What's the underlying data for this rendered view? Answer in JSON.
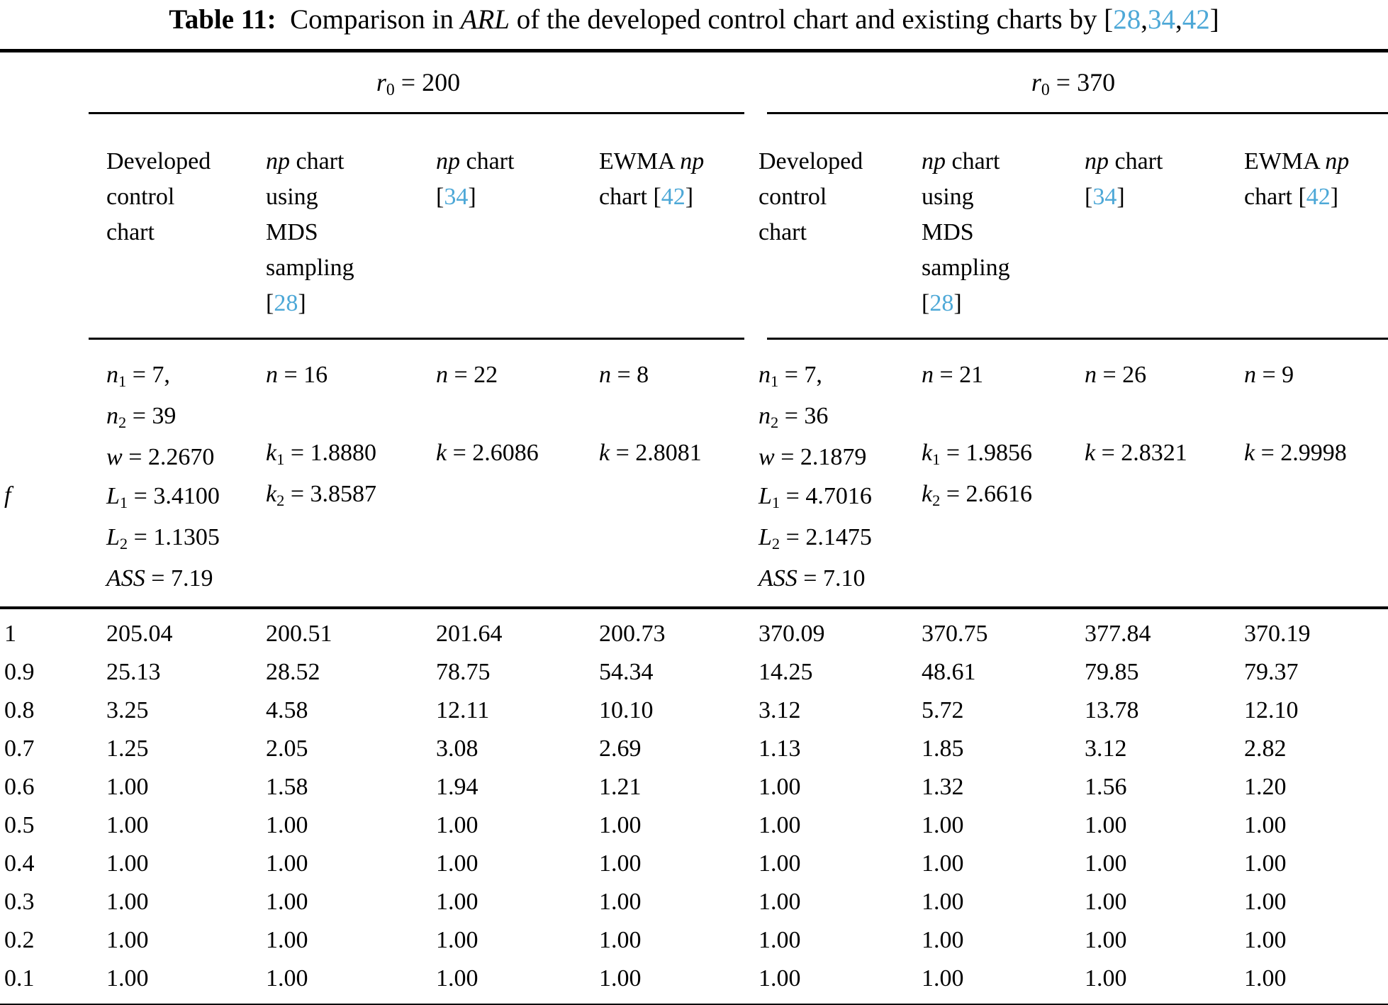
{
  "cite_color": "#4da8d7",
  "title_segments": [
    {
      "t": "Table 11:",
      "b": true
    },
    {
      "t": " Comparison in "
    },
    {
      "t": "ARL",
      "i": true
    },
    {
      "t": " of the developed control chart and existing charts by ["
    },
    {
      "t": "28",
      "c": true
    },
    {
      "t": ","
    },
    {
      "t": "34",
      "c": true
    },
    {
      "t": ","
    },
    {
      "t": "42",
      "c": true
    },
    {
      "t": "]"
    }
  ],
  "group_headers": {
    "left": [
      {
        "t": "r",
        "i": true
      },
      {
        "t": "0",
        "s": true
      },
      {
        "t": " = 200"
      }
    ],
    "right": [
      {
        "t": "r",
        "i": true
      },
      {
        "t": "0",
        "s": true
      },
      {
        "t": " = 370"
      }
    ]
  },
  "column_headers": [
    [
      {
        "t": "Developed\ncontrol\nchart"
      }
    ],
    [
      {
        "t": "np",
        "i": true
      },
      {
        "t": " chart\nusing\nMDS\nsampling\n["
      },
      {
        "t": "28",
        "c": true
      },
      {
        "t": "]"
      }
    ],
    [
      {
        "t": "np",
        "i": true
      },
      {
        "t": " chart\n["
      },
      {
        "t": "34",
        "c": true
      },
      {
        "t": "]"
      }
    ],
    [
      {
        "t": "EWMA "
      },
      {
        "t": "np",
        "i": true
      },
      {
        "t": "\nchart ["
      },
      {
        "t": "42",
        "c": true
      },
      {
        "t": "]"
      }
    ],
    [
      {
        "t": "Developed\ncontrol\nchart"
      }
    ],
    [
      {
        "t": "np",
        "i": true
      },
      {
        "t": " chart\nusing\nMDS\nsampling\n["
      },
      {
        "t": "28",
        "c": true
      },
      {
        "t": "]"
      }
    ],
    [
      {
        "t": "np",
        "i": true
      },
      {
        "t": " chart\n["
      },
      {
        "t": "34",
        "c": true
      },
      {
        "t": "]"
      }
    ],
    [
      {
        "t": "EWMA "
      },
      {
        "t": "np",
        "i": true
      },
      {
        "t": "\nchart ["
      },
      {
        "t": "42",
        "c": true
      },
      {
        "t": "]"
      }
    ]
  ],
  "f_label": [
    {
      "t": "f",
      "i": true
    }
  ],
  "param_cells": [
    [
      {
        "t": "n",
        "i": true
      },
      {
        "t": "1",
        "s": true
      },
      {
        "t": " = 7,\n"
      },
      {
        "t": "n",
        "i": true
      },
      {
        "t": "2",
        "s": true
      },
      {
        "t": " = 39\n"
      },
      {
        "t": "w",
        "i": true
      },
      {
        "t": " = 2.2670\n"
      },
      {
        "t": "L",
        "i": true
      },
      {
        "t": "1",
        "s": true
      },
      {
        "t": " = 3.4100\n"
      },
      {
        "t": "L",
        "i": true
      },
      {
        "t": "2",
        "s": true
      },
      {
        "t": " = 1.1305\n"
      },
      {
        "t": "ASS",
        "i": true
      },
      {
        "t": " = 7.19"
      }
    ],
    [
      {
        "t": "n",
        "i": true
      },
      {
        "t": " = 16\n\n"
      },
      {
        "t": "k",
        "i": true
      },
      {
        "t": "1",
        "s": true
      },
      {
        "t": " = 1.8880\n"
      },
      {
        "t": "k",
        "i": true
      },
      {
        "t": "2",
        "s": true
      },
      {
        "t": " = 3.8587"
      }
    ],
    [
      {
        "t": "n",
        "i": true
      },
      {
        "t": " = 22\n\n"
      },
      {
        "t": "k",
        "i": true
      },
      {
        "t": " = 2.6086"
      }
    ],
    [
      {
        "t": "n",
        "i": true
      },
      {
        "t": " = 8\n\n"
      },
      {
        "t": "k",
        "i": true
      },
      {
        "t": " = 2.8081"
      }
    ],
    [
      {
        "t": "n",
        "i": true
      },
      {
        "t": "1",
        "s": true
      },
      {
        "t": " = 7,\n"
      },
      {
        "t": "n",
        "i": true
      },
      {
        "t": "2",
        "s": true
      },
      {
        "t": " = 36\n"
      },
      {
        "t": "w",
        "i": true
      },
      {
        "t": " = 2.1879\n"
      },
      {
        "t": "L",
        "i": true
      },
      {
        "t": "1",
        "s": true
      },
      {
        "t": " = 4.7016\n"
      },
      {
        "t": "L",
        "i": true
      },
      {
        "t": "2",
        "s": true
      },
      {
        "t": " = 2.1475\n"
      },
      {
        "t": "ASS",
        "i": true
      },
      {
        "t": " = 7.10"
      }
    ],
    [
      {
        "t": "n",
        "i": true
      },
      {
        "t": " = 21\n\n"
      },
      {
        "t": "k",
        "i": true
      },
      {
        "t": "1",
        "s": true
      },
      {
        "t": " = 1.9856\n"
      },
      {
        "t": "k",
        "i": true
      },
      {
        "t": "2",
        "s": true
      },
      {
        "t": " = 2.6616"
      }
    ],
    [
      {
        "t": "n",
        "i": true
      },
      {
        "t": " = 26\n\n"
      },
      {
        "t": "k",
        "i": true
      },
      {
        "t": " = 2.8321"
      }
    ],
    [
      {
        "t": "n",
        "i": true
      },
      {
        "t": " = 9\n\n"
      },
      {
        "t": "k",
        "i": true
      },
      {
        "t": " = 2.9998"
      }
    ]
  ],
  "data_rows": [
    {
      "f": "1",
      "values": [
        "205.04",
        "200.51",
        "201.64",
        "200.73",
        "370.09",
        "370.75",
        "377.84",
        "370.19"
      ]
    },
    {
      "f": "0.9",
      "values": [
        "25.13",
        "28.52",
        "78.75",
        "54.34",
        "14.25",
        "48.61",
        "79.85",
        "79.37"
      ]
    },
    {
      "f": "0.8",
      "values": [
        "3.25",
        "4.58",
        "12.11",
        "10.10",
        "3.12",
        "5.72",
        "13.78",
        "12.10"
      ]
    },
    {
      "f": "0.7",
      "values": [
        "1.25",
        "2.05",
        "3.08",
        "2.69",
        "1.13",
        "1.85",
        "3.12",
        "2.82"
      ]
    },
    {
      "f": "0.6",
      "values": [
        "1.00",
        "1.58",
        "1.94",
        "1.21",
        "1.00",
        "1.32",
        "1.56",
        "1.20"
      ]
    },
    {
      "f": "0.5",
      "values": [
        "1.00",
        "1.00",
        "1.00",
        "1.00",
        "1.00",
        "1.00",
        "1.00",
        "1.00"
      ]
    },
    {
      "f": "0.4",
      "values": [
        "1.00",
        "1.00",
        "1.00",
        "1.00",
        "1.00",
        "1.00",
        "1.00",
        "1.00"
      ]
    },
    {
      "f": "0.3",
      "values": [
        "1.00",
        "1.00",
        "1.00",
        "1.00",
        "1.00",
        "1.00",
        "1.00",
        "1.00"
      ]
    },
    {
      "f": "0.2",
      "values": [
        "1.00",
        "1.00",
        "1.00",
        "1.00",
        "1.00",
        "1.00",
        "1.00",
        "1.00"
      ]
    },
    {
      "f": "0.1",
      "values": [
        "1.00",
        "1.00",
        "1.00",
        "1.00",
        "1.00",
        "1.00",
        "1.00",
        "1.00"
      ]
    }
  ]
}
